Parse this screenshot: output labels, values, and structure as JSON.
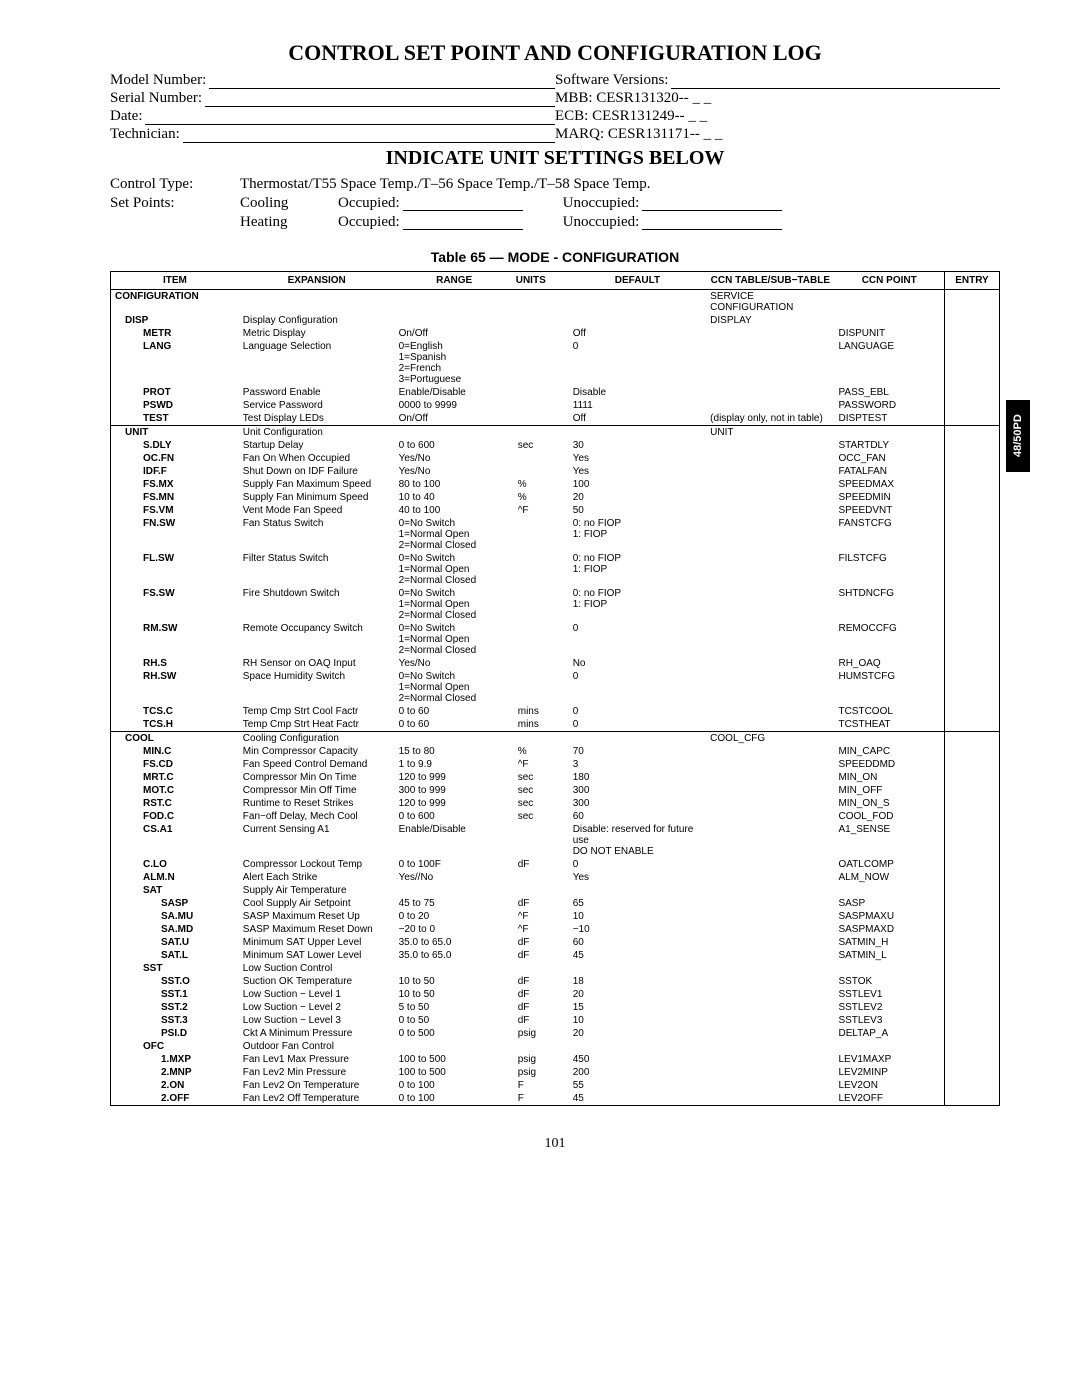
{
  "doc": {
    "title": "CONTROL SET POINT AND CONFIGURATION LOG",
    "subtitle": "INDICATE UNIT SETTINGS BELOW",
    "table_title": "Table 65 — MODE - CONFIGURATION",
    "page_number": "101",
    "side_tab": "48/50PD"
  },
  "header": {
    "model_number_lbl": "Model Number:",
    "serial_number_lbl": "Serial Number:",
    "date_lbl": "Date:",
    "technician_lbl": "Technician:",
    "sw_versions_lbl": "Software Versions:",
    "mbb_lbl": "MBB: CESR131320-- _ _",
    "ecb_lbl": "ECB: CESR131249-- _ _",
    "marq_lbl": "MARQ: CESR131171-- _ _",
    "control_type_lbl": "Control Type:",
    "control_type_val": "Thermostat/T55 Space Temp./T–56 Space Temp./T–58 Space Temp.",
    "set_points_lbl": "Set Points:",
    "cooling_lbl": "Cooling",
    "heating_lbl": "Heating",
    "occupied_lbl": "Occupied:",
    "unoccupied_lbl": "Unoccupied:"
  },
  "columns": [
    "ITEM",
    "EXPANSION",
    "RANGE",
    "UNITS",
    "DEFAULT",
    "CCN TABLE/SUB−TABLE",
    "CCN POINT",
    "ENTRY"
  ],
  "rows": [
    {
      "section": true,
      "item": "CONFIGURATION",
      "indent": 0,
      "ccn_table": "SERVICE CONFIGURATION"
    },
    {
      "item": "DISP",
      "indent": 1,
      "exp": "Display Configuration",
      "ccn_table": "DISPLAY"
    },
    {
      "item": "METR",
      "indent": 2,
      "exp": "Metric Display",
      "range": "On/Off",
      "default": "Off",
      "ccn_point": "DISPUNIT"
    },
    {
      "item": "LANG",
      "indent": 2,
      "exp": "Language Selection",
      "range": "0=English\n1=Spanish\n2=French\n3=Portuguese",
      "default": "0",
      "ccn_point": "LANGUAGE"
    },
    {
      "item": "PROT",
      "indent": 2,
      "exp": "Password Enable",
      "range": "Enable/Disable",
      "default": "Disable",
      "ccn_point": "PASS_EBL"
    },
    {
      "item": "PSWD",
      "indent": 2,
      "exp": "Service Password",
      "range": "0000 to 9999",
      "default": "1111",
      "ccn_point": "PASSWORD"
    },
    {
      "item": "TEST",
      "indent": 2,
      "exp": "Test Display LEDs",
      "range": "On/Off",
      "default": "Off",
      "ccn_table": "(display only, not in table)",
      "ccn_point": "DISPTEST"
    },
    {
      "section": true,
      "item": "UNIT",
      "indent": 1,
      "exp": "Unit Configuration",
      "ccn_table": "UNIT"
    },
    {
      "item": "S.DLY",
      "indent": 2,
      "exp": "Startup Delay",
      "range": "0 to 600",
      "units": "sec",
      "default": "30",
      "ccn_point": "STARTDLY"
    },
    {
      "item": "OC.FN",
      "indent": 2,
      "exp": "Fan On When Occupied",
      "range": "Yes/No",
      "default": "Yes",
      "ccn_point": "OCC_FAN"
    },
    {
      "item": "IDF.F",
      "indent": 2,
      "exp": "Shut Down on IDF Failure",
      "range": "Yes/No",
      "default": "Yes",
      "ccn_point": "FATALFAN"
    },
    {
      "item": "FS.MX",
      "indent": 2,
      "exp": "Supply Fan Maximum Speed",
      "range": "80 to 100",
      "units": "%",
      "default": "100",
      "ccn_point": "SPEEDMAX"
    },
    {
      "item": "FS.MN",
      "indent": 2,
      "exp": "Supply Fan Minimum Speed",
      "range": "10 to 40",
      "units": "%",
      "default": "20",
      "ccn_point": "SPEEDMIN"
    },
    {
      "item": "FS.VM",
      "indent": 2,
      "exp": "Vent Mode Fan Speed",
      "range": "40 to 100",
      "units": "^F",
      "default": "50",
      "ccn_point": "SPEEDVNT"
    },
    {
      "item": "FN.SW",
      "indent": 2,
      "exp": "Fan Status Switch",
      "range": "0=No Switch\n1=Normal Open\n2=Normal Closed",
      "default": "0: no FIOP\n1: FIOP",
      "ccn_point": "FANSTCFG"
    },
    {
      "item": "FL.SW",
      "indent": 2,
      "exp": "Filter Status Switch",
      "range": "0=No Switch\n1=Normal Open\n2=Normal Closed",
      "default": "0: no FIOP\n1: FIOP",
      "ccn_point": "FILSTCFG"
    },
    {
      "item": "FS.SW",
      "indent": 2,
      "exp": "Fire Shutdown Switch",
      "range": "0=No Switch\n1=Normal Open\n2=Normal Closed",
      "default": "0: no FIOP\n1: FIOP",
      "ccn_point": "SHTDNCFG"
    },
    {
      "item": "RM.SW",
      "indent": 2,
      "exp": "Remote Occupancy Switch",
      "range": "0=No Switch\n1=Normal Open\n2=Normal Closed",
      "default": "0",
      "ccn_point": "REMOCCFG"
    },
    {
      "item": "RH.S",
      "indent": 2,
      "exp": "RH Sensor on OAQ Input",
      "range": "Yes/No",
      "default": "No",
      "ccn_point": "RH_OAQ"
    },
    {
      "item": "RH.SW",
      "indent": 2,
      "exp": "Space Humidity Switch",
      "range": "0=No Switch\n1=Normal Open\n2=Normal Closed",
      "default": "0",
      "ccn_point": "HUMSTCFG"
    },
    {
      "item": "TCS.C",
      "indent": 2,
      "exp": "Temp Cmp Strt Cool Factr",
      "range": "0 to 60",
      "units": "mins",
      "default": "0",
      "ccn_point": "TCSTCOOL"
    },
    {
      "item": "TCS.H",
      "indent": 2,
      "exp": "Temp Cmp Strt Heat Factr",
      "range": "0 to 60",
      "units": "mins",
      "default": "0",
      "ccn_point": "TCSTHEAT"
    },
    {
      "section": true,
      "item": "COOL",
      "indent": 1,
      "exp": "Cooling Configuration",
      "ccn_table": "COOL_CFG"
    },
    {
      "item": "MIN.C",
      "indent": 2,
      "exp": "Min Compressor Capacity",
      "range": "15 to 80",
      "units": "%",
      "default": "70",
      "ccn_point": "MIN_CAPC"
    },
    {
      "item": "FS.CD",
      "indent": 2,
      "exp": "Fan Speed Control Demand",
      "range": "1 to 9.9",
      "units": "^F",
      "default": "3",
      "ccn_point": "SPEEDDMD"
    },
    {
      "item": "MRT.C",
      "indent": 2,
      "exp": "Compressor Min On Time",
      "range": "120 to 999",
      "units": "sec",
      "default": "180",
      "ccn_point": "MIN_ON"
    },
    {
      "item": "MOT.C",
      "indent": 2,
      "exp": "Compressor Min Off Time",
      "range": "300 to 999",
      "units": "sec",
      "default": "300",
      "ccn_point": "MIN_OFF"
    },
    {
      "item": "RST.C",
      "indent": 2,
      "exp": "Runtime to Reset Strikes",
      "range": "120 to 999",
      "units": "sec",
      "default": "300",
      "ccn_point": "MIN_ON_S"
    },
    {
      "item": "FOD.C",
      "indent": 2,
      "exp": "Fan−off Delay, Mech Cool",
      "range": "0 to 600",
      "units": "sec",
      "default": "60",
      "ccn_point": "COOL_FOD"
    },
    {
      "item": "CS.A1",
      "indent": 2,
      "exp": "Current Sensing A1",
      "range": "Enable/Disable",
      "default": "Disable: reserved for future use\nDO NOT ENABLE",
      "ccn_point": "A1_SENSE"
    },
    {
      "item": "C.LO",
      "indent": 2,
      "exp": "Compressor Lockout Temp",
      "range": "0 to 100F",
      "units": "dF",
      "default": "0",
      "ccn_point": "OATLCOMP"
    },
    {
      "item": "ALM.N",
      "indent": 2,
      "exp": "Alert Each Strike",
      "range": "Yes//No",
      "default": "Yes",
      "ccn_point": "ALM_NOW"
    },
    {
      "item": "SAT",
      "indent": 2,
      "exp": "Supply Air Temperature"
    },
    {
      "item": "SASP",
      "indent": 3,
      "exp": "Cool Supply Air Setpoint",
      "range": "45 to 75",
      "units": "dF",
      "default": "65",
      "ccn_point": "SASP"
    },
    {
      "item": "SA.MU",
      "indent": 3,
      "exp": "SASP Maximum Reset Up",
      "range": "0 to 20",
      "units": "^F",
      "default": "10",
      "ccn_point": "SASPMAXU"
    },
    {
      "item": "SA.MD",
      "indent": 3,
      "exp": "SASP Maximum Reset Down",
      "range": "−20 to 0",
      "units": "^F",
      "default": "−10",
      "ccn_point": "SASPMAXD"
    },
    {
      "item": "SAT.U",
      "indent": 3,
      "exp": "Minimum SAT Upper Level",
      "range": "35.0 to 65.0",
      "units": "dF",
      "default": "60",
      "ccn_point": "SATMIN_H"
    },
    {
      "item": "SAT.L",
      "indent": 3,
      "exp": "Minimum SAT Lower Level",
      "range": "35.0 to 65.0",
      "units": "dF",
      "default": "45",
      "ccn_point": "SATMIN_L"
    },
    {
      "item": "SST",
      "indent": 2,
      "exp": "Low Suction Control"
    },
    {
      "item": "SST.O",
      "indent": 3,
      "exp": "Suction OK Temperature",
      "range": "10 to 50",
      "units": "dF",
      "default": "18",
      "ccn_point": "SSTOK"
    },
    {
      "item": "SST.1",
      "indent": 3,
      "exp": "Low Suction − Level 1",
      "range": "10 to 50",
      "units": "dF",
      "default": "20",
      "ccn_point": "SSTLEV1"
    },
    {
      "item": "SST.2",
      "indent": 3,
      "exp": "Low Suction − Level 2",
      "range": "5 to 50",
      "units": "dF",
      "default": "15",
      "ccn_point": "SSTLEV2"
    },
    {
      "item": "SST.3",
      "indent": 3,
      "exp": "Low Suction − Level 3",
      "range": "0 to 50",
      "units": "dF",
      "default": "10",
      "ccn_point": "SSTLEV3"
    },
    {
      "item": "PSI.D",
      "indent": 3,
      "exp": "Ckt A Minimum Pressure",
      "range": "0 to 500",
      "units": "psig",
      "default": "20",
      "ccn_point": "DELTAP_A"
    },
    {
      "item": "OFC",
      "indent": 2,
      "exp": "Outdoor Fan Control"
    },
    {
      "item": "1.MXP",
      "indent": 3,
      "exp": "Fan Lev1 Max Pressure",
      "range": "100 to 500",
      "units": "psig",
      "default": "450",
      "ccn_point": "LEV1MAXP"
    },
    {
      "item": "2.MNP",
      "indent": 3,
      "exp": "Fan Lev2 Min Pressure",
      "range": "100 to 500",
      "units": "psig",
      "default": "200",
      "ccn_point": "LEV2MINP"
    },
    {
      "item": "2.ON",
      "indent": 3,
      "exp": "Fan Lev2 On Temperature",
      "range": "0 to 100",
      "units": "F",
      "default": "55",
      "ccn_point": "LEV2ON"
    },
    {
      "item": "2.OFF",
      "indent": 3,
      "exp": "Fan Lev2 Off Temperature",
      "range": "0 to 100",
      "units": "F",
      "default": "45",
      "ccn_point": "LEV2OFF"
    }
  ]
}
